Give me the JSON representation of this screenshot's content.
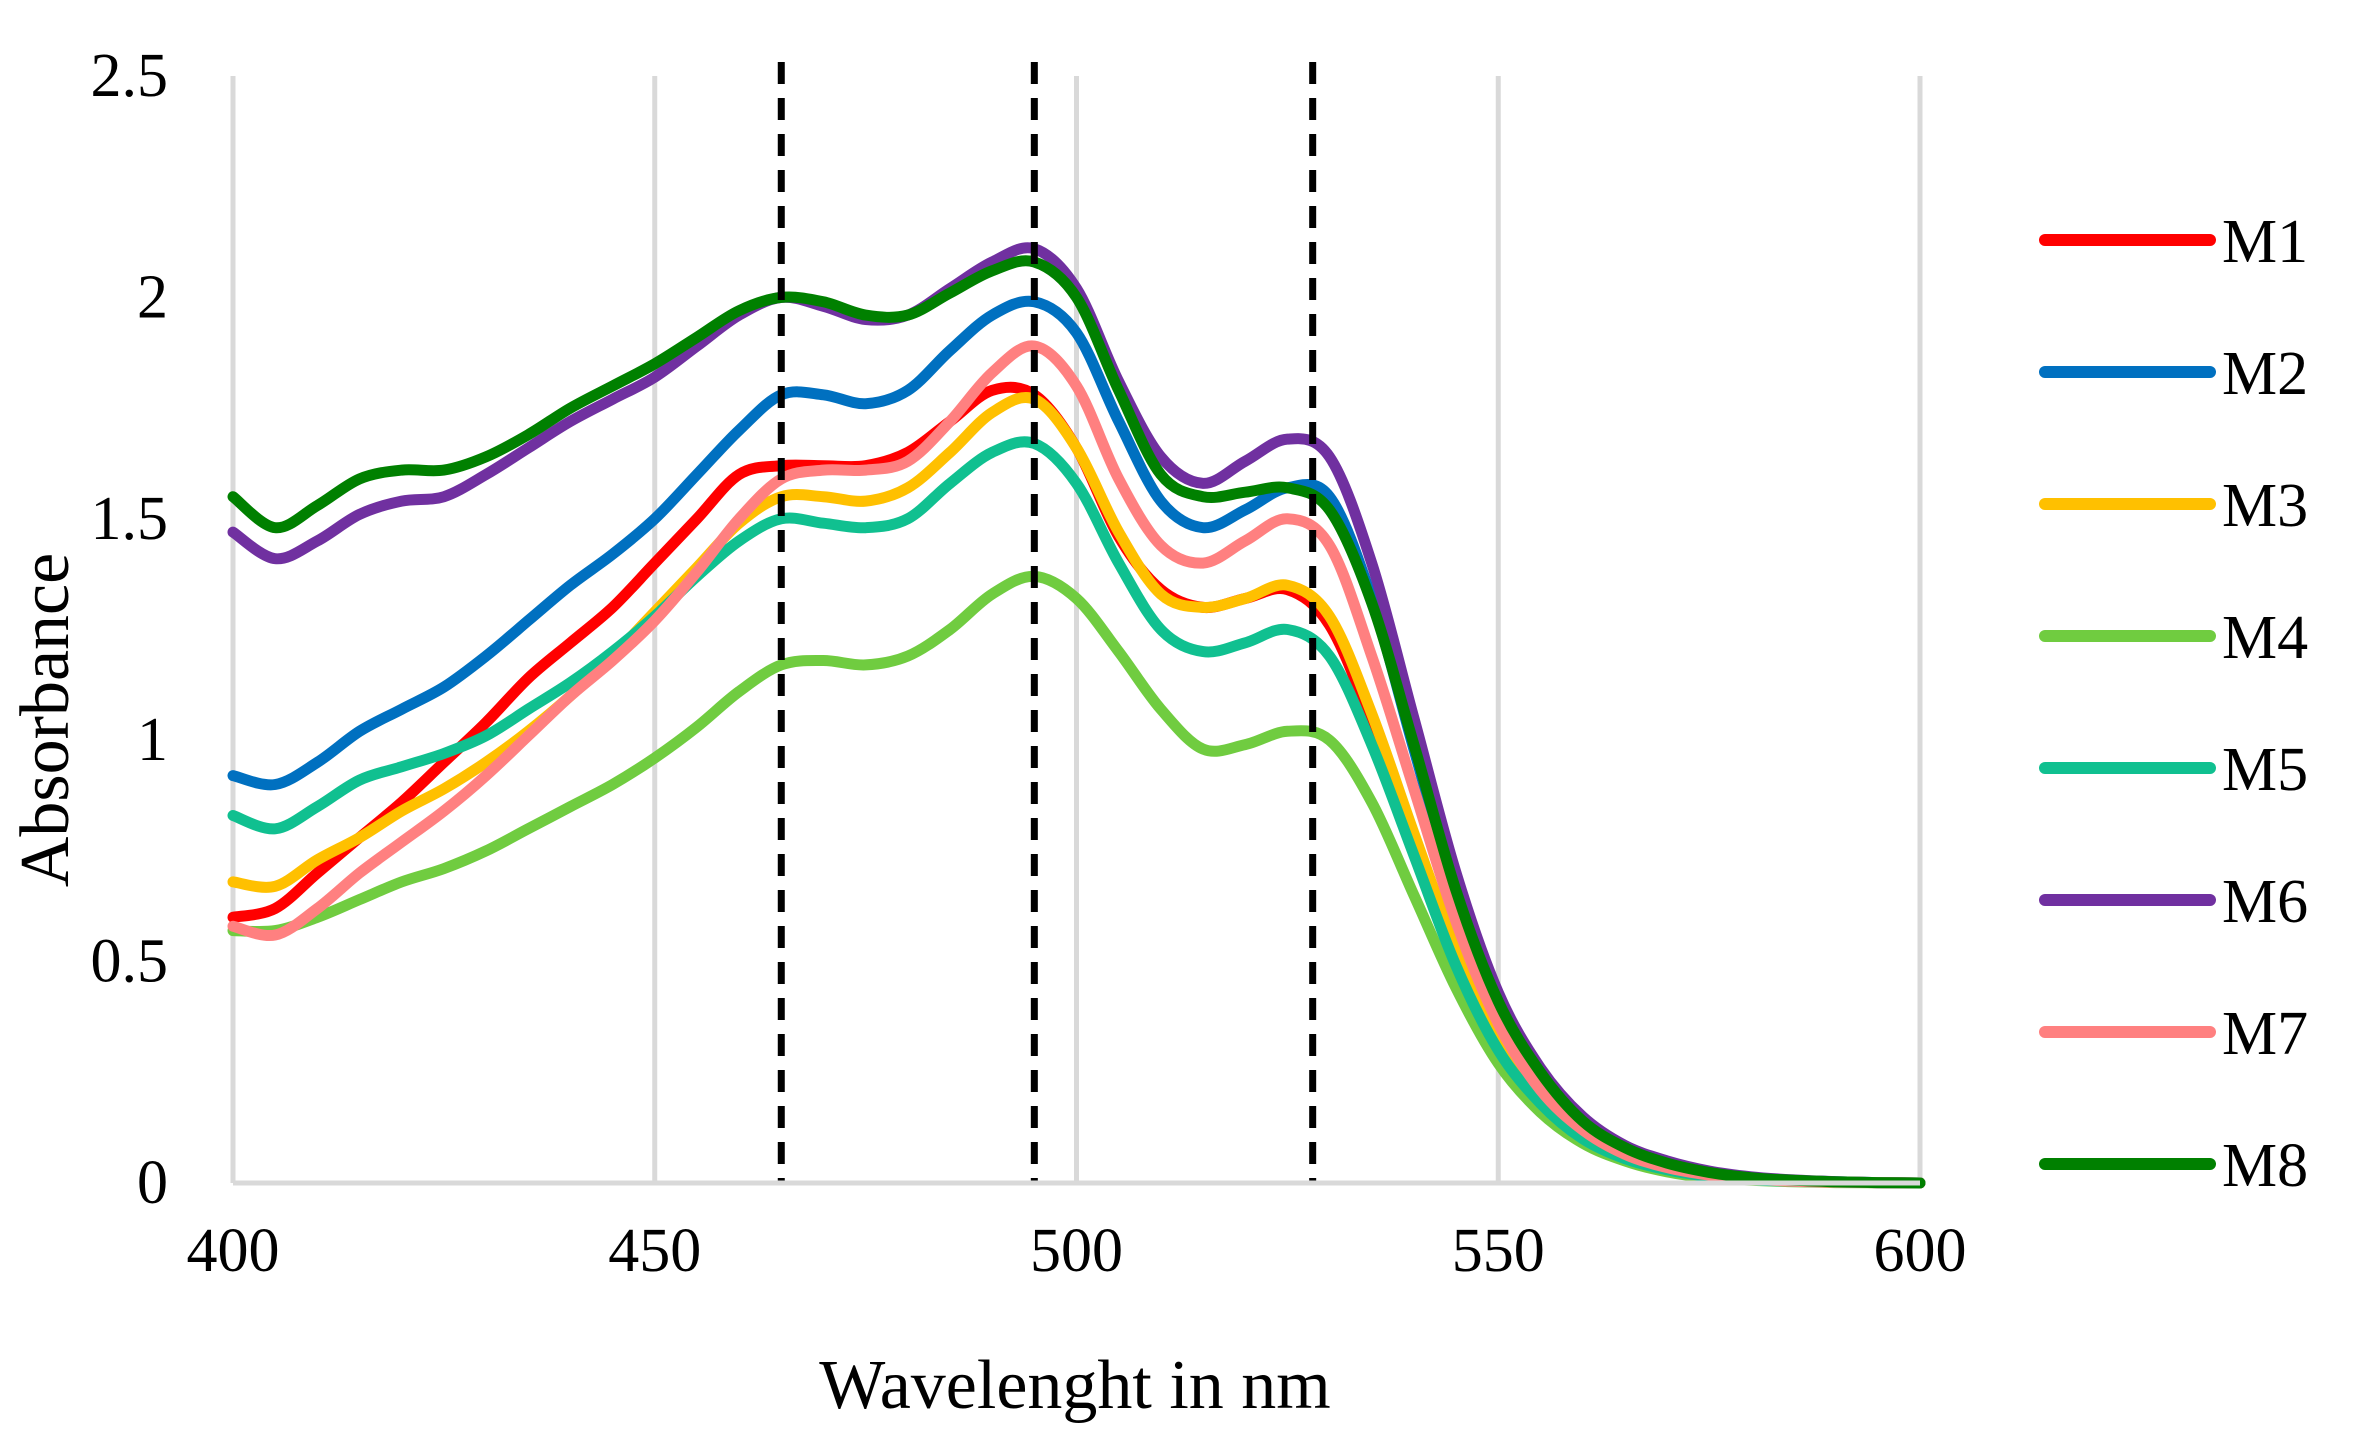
{
  "chart_data": {
    "type": "line",
    "title": "",
    "xlabel": "Wavelenght in nm",
    "ylabel": "Absorbance",
    "xlim": [
      400,
      600
    ],
    "ylim": [
      0,
      2.5
    ],
    "x_ticks": [
      400,
      450,
      500,
      550,
      600
    ],
    "x_tick_labels": [
      "400",
      "450",
      "500",
      "550",
      "600"
    ],
    "y_ticks": [
      0,
      0.5,
      1,
      1.5,
      2,
      2.5
    ],
    "y_tick_labels": [
      "0",
      "0.5",
      "1",
      "1.5",
      "2",
      "2.5"
    ],
    "grid": "vertical",
    "legend_position": "right",
    "reference_lines": [
      {
        "x": 465,
        "style": "dashed",
        "color": "#000000"
      },
      {
        "x": 495,
        "style": "dashed",
        "color": "#000000"
      },
      {
        "x": 528,
        "style": "dashed",
        "color": "#000000"
      }
    ],
    "x": [
      400,
      405,
      410,
      415,
      420,
      425,
      430,
      435,
      440,
      445,
      450,
      455,
      460,
      465,
      470,
      475,
      480,
      485,
      490,
      495,
      500,
      505,
      510,
      515,
      520,
      525,
      530,
      535,
      540,
      545,
      550,
      555,
      560,
      565,
      570,
      575,
      580,
      585,
      590,
      595,
      600
    ],
    "series": [
      {
        "name": "M1",
        "color": "#ff0000",
        "values": [
          0.6,
          0.62,
          0.7,
          0.78,
          0.86,
          0.95,
          1.04,
          1.14,
          1.22,
          1.3,
          1.4,
          1.5,
          1.6,
          1.62,
          1.62,
          1.62,
          1.65,
          1.72,
          1.79,
          1.78,
          1.66,
          1.46,
          1.34,
          1.3,
          1.32,
          1.34,
          1.26,
          1.04,
          0.78,
          0.52,
          0.32,
          0.19,
          0.11,
          0.06,
          0.03,
          0.015,
          0.008,
          0.004,
          0.002,
          0.001,
          0.0
        ]
      },
      {
        "name": "M2",
        "color": "#0070c0",
        "values": [
          0.92,
          0.9,
          0.95,
          1.02,
          1.07,
          1.12,
          1.19,
          1.27,
          1.35,
          1.42,
          1.5,
          1.6,
          1.7,
          1.78,
          1.78,
          1.76,
          1.79,
          1.88,
          1.96,
          1.99,
          1.92,
          1.72,
          1.54,
          1.48,
          1.52,
          1.57,
          1.55,
          1.32,
          0.98,
          0.65,
          0.4,
          0.24,
          0.14,
          0.08,
          0.045,
          0.025,
          0.013,
          0.006,
          0.003,
          0.001,
          0.0
        ]
      },
      {
        "name": "M3",
        "color": "#ffc000",
        "values": [
          0.68,
          0.67,
          0.73,
          0.78,
          0.84,
          0.89,
          0.95,
          1.02,
          1.1,
          1.19,
          1.29,
          1.39,
          1.49,
          1.55,
          1.55,
          1.54,
          1.57,
          1.65,
          1.74,
          1.77,
          1.66,
          1.47,
          1.33,
          1.3,
          1.32,
          1.35,
          1.28,
          1.06,
          0.79,
          0.53,
          0.33,
          0.2,
          0.11,
          0.06,
          0.03,
          0.016,
          0.008,
          0.004,
          0.002,
          0.001,
          0.0
        ]
      },
      {
        "name": "M4",
        "color": "#70cc40",
        "values": [
          0.57,
          0.57,
          0.6,
          0.64,
          0.68,
          0.71,
          0.75,
          0.8,
          0.85,
          0.9,
          0.96,
          1.03,
          1.11,
          1.17,
          1.18,
          1.17,
          1.19,
          1.25,
          1.33,
          1.37,
          1.32,
          1.2,
          1.07,
          0.98,
          0.99,
          1.02,
          1.0,
          0.86,
          0.65,
          0.44,
          0.27,
          0.16,
          0.09,
          0.05,
          0.025,
          0.012,
          0.006,
          0.003,
          0.001,
          0.0005,
          0.0
        ]
      },
      {
        "name": "M5",
        "color": "#10c090",
        "values": [
          0.83,
          0.8,
          0.85,
          0.91,
          0.94,
          0.97,
          1.01,
          1.07,
          1.13,
          1.2,
          1.28,
          1.37,
          1.45,
          1.5,
          1.49,
          1.48,
          1.5,
          1.58,
          1.65,
          1.67,
          1.58,
          1.4,
          1.25,
          1.2,
          1.22,
          1.25,
          1.19,
          0.99,
          0.74,
          0.49,
          0.3,
          0.18,
          0.1,
          0.055,
          0.03,
          0.015,
          0.007,
          0.004,
          0.002,
          0.001,
          0.0
        ]
      },
      {
        "name": "M6",
        "color": "#7030a0",
        "values": [
          1.47,
          1.41,
          1.45,
          1.51,
          1.54,
          1.55,
          1.6,
          1.66,
          1.72,
          1.77,
          1.82,
          1.89,
          1.96,
          2.0,
          1.98,
          1.95,
          1.96,
          2.02,
          2.08,
          2.11,
          2.02,
          1.81,
          1.64,
          1.58,
          1.63,
          1.68,
          1.64,
          1.4,
          1.05,
          0.7,
          0.43,
          0.26,
          0.15,
          0.085,
          0.05,
          0.027,
          0.014,
          0.007,
          0.003,
          0.001,
          0.0
        ]
      },
      {
        "name": "M7",
        "color": "#ff8080",
        "values": [
          0.58,
          0.56,
          0.62,
          0.7,
          0.77,
          0.84,
          0.92,
          1.01,
          1.1,
          1.18,
          1.27,
          1.38,
          1.5,
          1.59,
          1.61,
          1.61,
          1.63,
          1.72,
          1.83,
          1.89,
          1.8,
          1.59,
          1.44,
          1.4,
          1.45,
          1.5,
          1.44,
          1.19,
          0.89,
          0.59,
          0.36,
          0.21,
          0.12,
          0.065,
          0.035,
          0.018,
          0.009,
          0.004,
          0.002,
          0.001,
          0.0
        ]
      },
      {
        "name": "M8",
        "color": "#008000",
        "values": [
          1.55,
          1.48,
          1.53,
          1.59,
          1.61,
          1.61,
          1.64,
          1.69,
          1.75,
          1.8,
          1.85,
          1.91,
          1.97,
          2.0,
          1.99,
          1.96,
          1.96,
          2.01,
          2.06,
          2.08,
          2.0,
          1.79,
          1.6,
          1.55,
          1.56,
          1.57,
          1.52,
          1.31,
          0.99,
          0.66,
          0.41,
          0.25,
          0.14,
          0.08,
          0.045,
          0.024,
          0.012,
          0.006,
          0.003,
          0.001,
          0.0
        ]
      }
    ]
  }
}
